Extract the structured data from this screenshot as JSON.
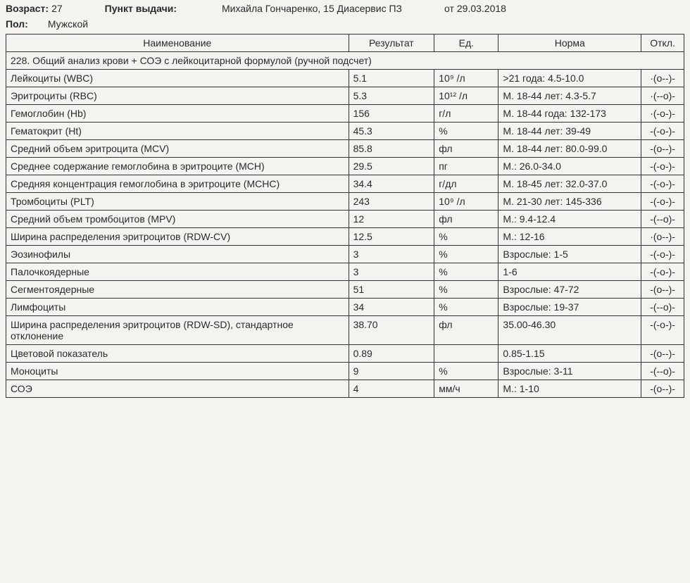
{
  "header": {
    "age_label": "Возраст:",
    "age_value": "27",
    "point_label": "Пункт выдачи:",
    "point_value": "Михайла Гончаренко, 15   Диасервис ПЗ",
    "date_label": "от",
    "date_value": "29.03.2018",
    "sex_label": "Пол:",
    "sex_value": "Мужской"
  },
  "table": {
    "columns": {
      "name": "Наименование",
      "result": "Результат",
      "unit": "Ед.",
      "norm": "Норма",
      "deviation": "Откл."
    },
    "section_title": "228. Общий анализ крови + СОЭ с лейкоцитарной формулой (ручной подсчет)",
    "rows": [
      {
        "name": "Лейкоциты (WBC)",
        "result": "5.1",
        "unit": "10⁹ /л",
        "norm": ">21 года: 4.5-10.0",
        "dev": "·(o--)-"
      },
      {
        "name": "Эритроциты (RBC)",
        "result": "5.3",
        "unit": "10¹² /л",
        "norm": "М. 18-44 лет: 4.3-5.7",
        "dev": "·(--o)-"
      },
      {
        "name": "Гемоглобин (Hb)",
        "result": "156",
        "unit": "г/л",
        "norm": "М. 18-44 года: 132-173",
        "dev": "·(-o-)-"
      },
      {
        "name": "Гематокрит (Ht)",
        "result": "45.3",
        "unit": "%",
        "norm": "М. 18-44 лет: 39-49",
        "dev": "-(-o-)-"
      },
      {
        "name": "Средний объем эритроцита (MCV)",
        "result": "85.8",
        "unit": "фл",
        "norm": "М. 18-44 лет: 80.0-99.0",
        "dev": "-(o--)-"
      },
      {
        "name": "Среднее содержание гемоглобина в эритроците (MCH)",
        "result": "29.5",
        "unit": "пг",
        "norm": "М.: 26.0-34.0",
        "dev": "-(-o-)-"
      },
      {
        "name": "Средняя концентрация гемоглобина в эритроците (MCHC)",
        "result": "34.4",
        "unit": "г/дл",
        "norm": "М. 18-45 лет: 32.0-37.0",
        "dev": "-(-o-)-"
      },
      {
        "name": "Тромбоциты (PLT)",
        "result": "243",
        "unit": "10⁹ /л",
        "norm": "М. 21-30 лет: 145-336",
        "dev": "-(-o-)-"
      },
      {
        "name": "Средний объем тромбоцитов (MPV)",
        "result": "12",
        "unit": "фл",
        "norm": "М.: 9.4-12.4",
        "dev": "-(--o)-"
      },
      {
        "name": "Ширина распределения эритроцитов (RDW-CV)",
        "result": "12.5",
        "unit": "%",
        "norm": "М.: 12-16",
        "dev": "·(o--)-"
      },
      {
        "name": "Эозинофилы",
        "result": "3",
        "unit": "%",
        "norm": "Взрослые: 1-5",
        "dev": "-(-o-)-"
      },
      {
        "name": "Палочкоядерные",
        "result": "3",
        "unit": "%",
        "norm": "1-6",
        "dev": "-(-o-)-"
      },
      {
        "name": "Сегментоядерные",
        "result": "51",
        "unit": "%",
        "norm": "Взрослые: 47-72",
        "dev": "-(o--)-"
      },
      {
        "name": "Лимфоциты",
        "result": "34",
        "unit": "%",
        "norm": "Взрослые: 19-37",
        "dev": "-(--o)-"
      },
      {
        "name": "Ширина распределения эритроцитов (RDW-SD), стандартное отклонение",
        "result": "38.70",
        "unit": "фл",
        "norm": "35.00-46.30",
        "dev": "-(-o-)-"
      },
      {
        "name": "Цветовой показатель",
        "result": "0.89",
        "unit": "",
        "norm": "0.85-1.15",
        "dev": "-(o--)-"
      },
      {
        "name": "Моноциты",
        "result": "9",
        "unit": "%",
        "norm": "Взрослые: 3-11",
        "dev": "-(--o)-"
      },
      {
        "name": "СОЭ",
        "result": "4",
        "unit": "мм/ч",
        "norm": "М.: 1-10",
        "dev": "-(o--)-"
      }
    ]
  },
  "style": {
    "border_color": "#333333",
    "background_color": "#f5f3f0",
    "text_color": "#2a2a2a",
    "font_size": 14
  }
}
